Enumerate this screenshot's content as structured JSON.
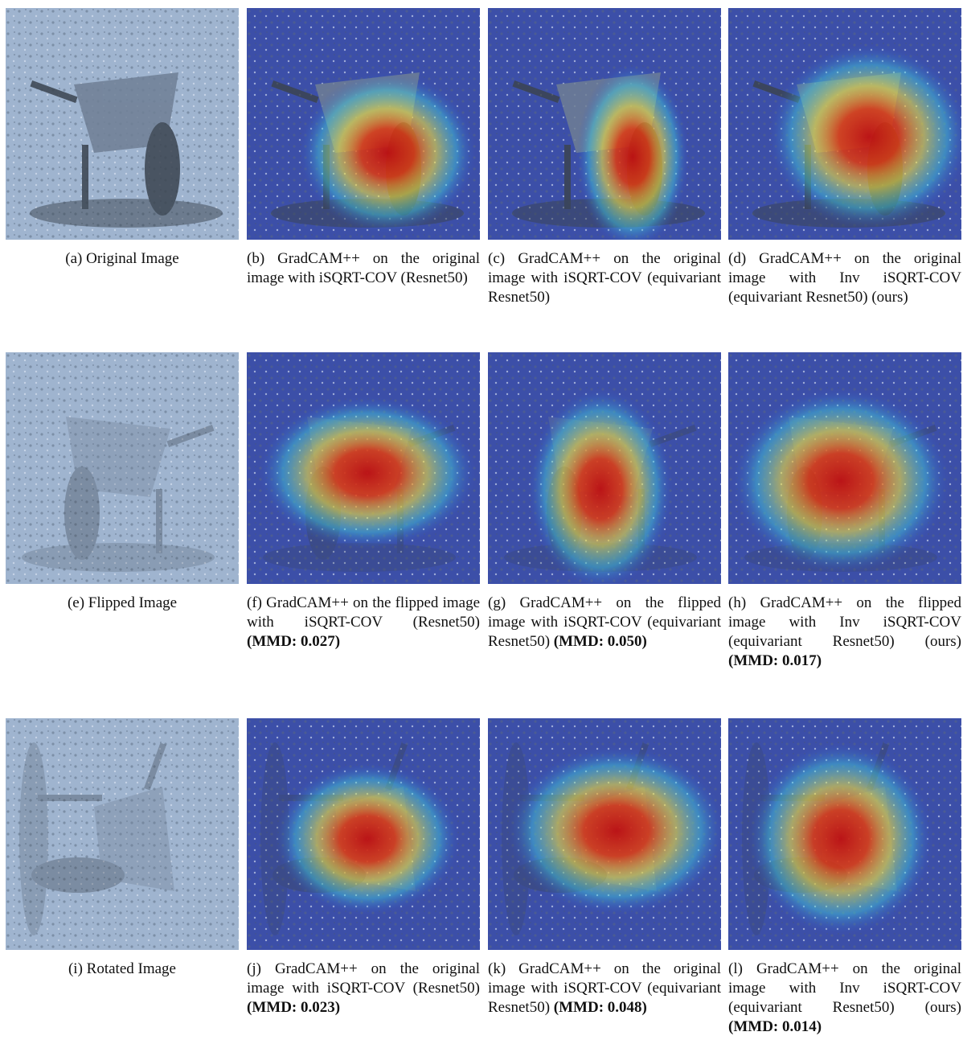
{
  "panels": [
    {
      "label": "(a)",
      "text": "Original Image",
      "bold": null
    },
    {
      "label": "(b)",
      "text": "GradCAM++ on the original image with iSQRT-COV (Resnet50)",
      "bold": null
    },
    {
      "label": "(c)",
      "text": "GradCAM++ on the original image with iSQRT-COV (equivariant Resnet50)",
      "bold": null
    },
    {
      "label": "(d)",
      "text": "GradCAM++ on the original image with Inv iSQRT-COV (equivariant Resnet50) (ours)",
      "bold": null
    },
    {
      "label": "(e)",
      "text": "Flipped Image",
      "bold": null
    },
    {
      "label": "(f)",
      "text": "GradCAM++ on the flipped image with iSQRT-COV (Resnet50)",
      "bold": "(MMD: 0.027)"
    },
    {
      "label": "(g)",
      "text": "GradCAM++ on the flipped image with iSQRT-COV (equivariant Resnet50)",
      "bold": "(MMD: 0.050)"
    },
    {
      "label": "(h)",
      "text": "GradCAM++ on the flipped image with Inv iSQRT-COV (equivariant Resnet50) (ours)",
      "bold": "(MMD: 0.017)"
    },
    {
      "label": "(i)",
      "text": "Rotated Image",
      "bold": null
    },
    {
      "label": "(j)",
      "text": "GradCAM++ on the original image with iSQRT-COV (Resnet50)",
      "bold": "(MMD: 0.023)"
    },
    {
      "label": "(k)",
      "text": "GradCAM++ on the original image with iSQRT-COV (equivariant Resnet50)",
      "bold": "(MMD: 0.048)"
    },
    {
      "label": "(l)",
      "text": "GradCAM++ on the original image with Inv iSQRT-COV (equivariant Resnet50) (ours)",
      "bold": "(MMD: 0.014)"
    }
  ]
}
